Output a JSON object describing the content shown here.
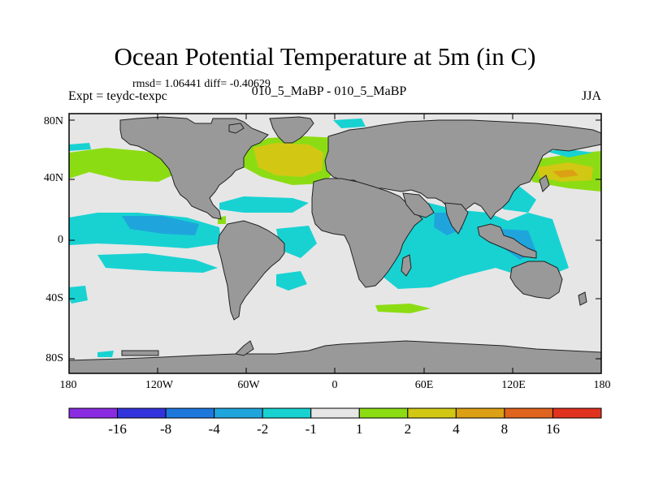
{
  "title": "Ocean Potential Temperature at 5m (in C)",
  "stats": "rmsd= 1.06441 diff= -0.40629",
  "left_label": "Expt = teydc-texpc",
  "center_label": "010_5_MaBP - 010_5_MaBP",
  "right_label": "JJA",
  "lat_ticks": [
    "80N",
    "40N",
    "0",
    "40S",
    "80S"
  ],
  "lon_ticks": [
    "180",
    "120W",
    "60W",
    "0",
    "60E",
    "120E",
    "180"
  ],
  "colorbar": {
    "levels": [
      "-16",
      "-8",
      "-4",
      "-2",
      "-1",
      "1",
      "2",
      "4",
      "8",
      "16"
    ],
    "colors": [
      "#8a2be2",
      "#3333dd",
      "#1e78dc",
      "#1fa5dc",
      "#18d2d2",
      "#e6e6e6",
      "#8cdc14",
      "#d2c814",
      "#dca014",
      "#e0641e",
      "#e0321e"
    ]
  },
  "map_colors": {
    "land": "#999999",
    "ocean_neutral": "#e6e6e6"
  }
}
